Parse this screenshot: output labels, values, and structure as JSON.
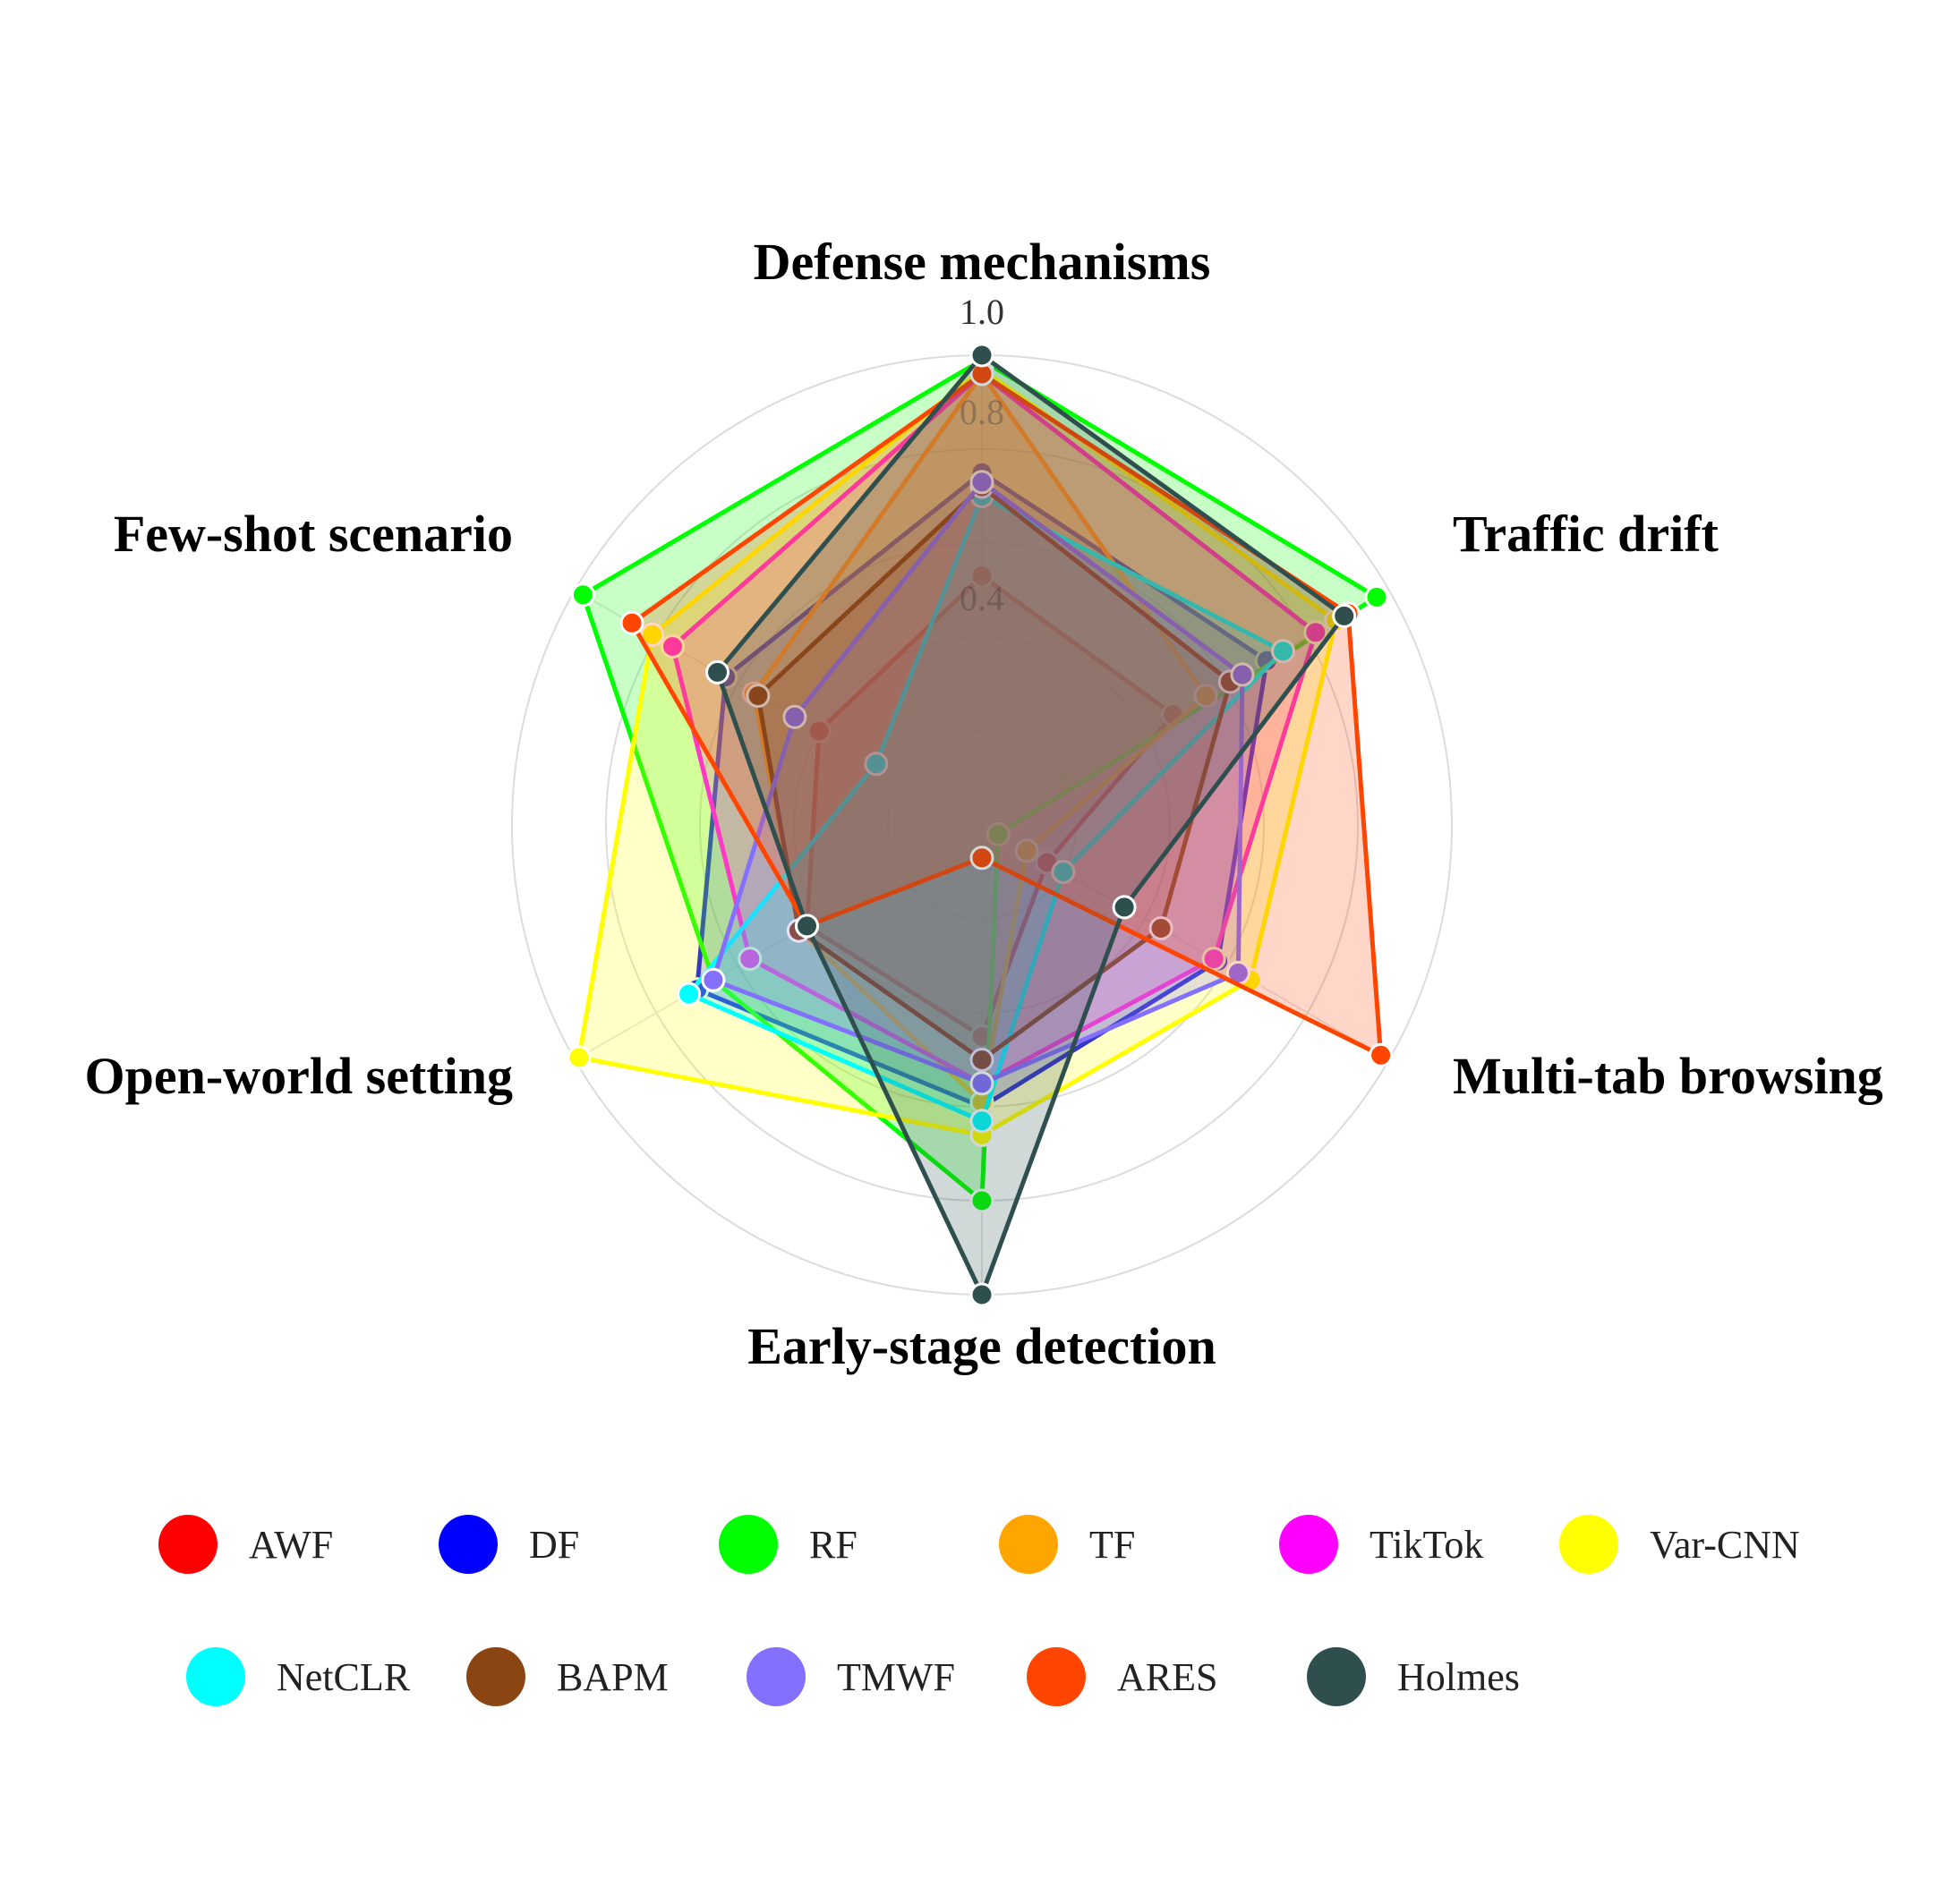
{
  "chart_data": {
    "type": "radar",
    "title": "",
    "axes": [
      "Defense mechanisms",
      "Traffic drift",
      "Multi-tab browsing",
      "Early-stage detection",
      "Open-world setting",
      "Few-shot scenario"
    ],
    "range": [
      0,
      1.0
    ],
    "tick_labels": [
      "1.0",
      "0.8",
      "0.4"
    ],
    "grid": true,
    "legend_position": "bottom",
    "series": [
      {
        "name": "AWF",
        "color": "#ff0000",
        "values": [
          0.53,
          0.47,
          0.16,
          0.45,
          0.43,
          0.4
        ]
      },
      {
        "name": "DF",
        "color": "#0000ff",
        "values": [
          0.75,
          0.7,
          0.58,
          0.6,
          0.7,
          0.63
        ]
      },
      {
        "name": "RF",
        "color": "#00ff00",
        "values": [
          0.99,
          0.97,
          0.04,
          0.8,
          0.66,
          0.98
        ]
      },
      {
        "name": "TF",
        "color": "#ffa500",
        "values": [
          0.96,
          0.55,
          0.11,
          0.59,
          0.45,
          0.56
        ]
      },
      {
        "name": "TikTok",
        "color": "#ff00ff",
        "values": [
          0.96,
          0.82,
          0.57,
          0.55,
          0.57,
          0.76
        ]
      },
      {
        "name": "Var-CNN",
        "color": "#ffff00",
        "values": [
          0.97,
          0.87,
          0.66,
          0.66,
          0.99,
          0.81
        ]
      },
      {
        "name": "NetCLR",
        "color": "#00ffff",
        "values": [
          0.7,
          0.74,
          0.2,
          0.63,
          0.72,
          0.26
        ]
      },
      {
        "name": "BAPM",
        "color": "#8b4513",
        "values": [
          0.72,
          0.61,
          0.44,
          0.5,
          0.45,
          0.55
        ]
      },
      {
        "name": "TMWF",
        "color": "#8470ff",
        "values": [
          0.73,
          0.64,
          0.63,
          0.55,
          0.66,
          0.46
        ]
      },
      {
        "name": "ARES",
        "color": "#ff4500",
        "values": [
          0.96,
          0.9,
          0.98,
          0.07,
          0.43,
          0.86
        ]
      },
      {
        "name": "Holmes",
        "color": "#2f4f4f",
        "values": [
          1.0,
          0.89,
          0.35,
          1.0,
          0.43,
          0.65
        ]
      }
    ]
  }
}
